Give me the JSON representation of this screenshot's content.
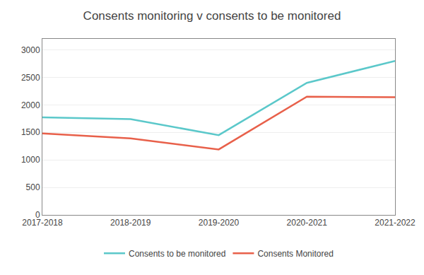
{
  "chart_data": {
    "type": "line",
    "title": "Consents monitoring v consents to be monitored",
    "categories": [
      "2017-2018",
      "2018-2019",
      "2019-2020",
      "2020-2021",
      "2021-2022"
    ],
    "series": [
      {
        "name": "Consents to be monitored",
        "color": "#5BC8CA",
        "values": [
          1775,
          1740,
          1450,
          2400,
          2800
        ]
      },
      {
        "name": "Consents Monitored",
        "color": "#E8604A",
        "values": [
          1480,
          1390,
          1190,
          2150,
          2140
        ]
      }
    ],
    "ylim": [
      0,
      3200
    ],
    "yticks": [
      0,
      500,
      1000,
      1500,
      2000,
      2500,
      3000
    ],
    "grid": true,
    "legend": "bottom"
  }
}
